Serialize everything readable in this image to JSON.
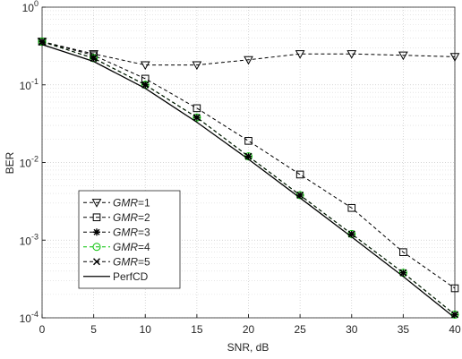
{
  "chart_data": {
    "type": "line",
    "x_label": "SNR, dB",
    "y_label": "BER",
    "x": [
      0,
      5,
      10,
      15,
      20,
      25,
      30,
      35,
      40
    ],
    "xlim": [
      0,
      40
    ],
    "xticks": [
      0,
      5,
      10,
      15,
      20,
      25,
      30,
      35,
      40
    ],
    "ylim": [
      0.0001,
      1
    ],
    "y_scale": "log",
    "yticks": [
      {
        "value": 0.0001,
        "label": "10^-4"
      },
      {
        "value": 0.001,
        "label": "10^-3"
      },
      {
        "value": 0.01,
        "label": "10^-2"
      },
      {
        "value": 0.1,
        "label": "10^-1"
      },
      {
        "value": 1,
        "label": "10^0"
      }
    ],
    "grid": true,
    "legend": "lower left",
    "series": [
      {
        "name": "GMR=1",
        "color": "#000000",
        "dash": true,
        "marker": "triangle-down",
        "values": [
          0.36,
          0.25,
          0.18,
          0.18,
          0.21,
          0.25,
          0.25,
          0.24,
          0.23
        ]
      },
      {
        "name": "GMR=2",
        "color": "#000000",
        "dash": true,
        "marker": "square",
        "values": [
          0.36,
          0.24,
          0.12,
          0.05,
          0.019,
          0.007,
          0.0026,
          0.0007,
          0.00024
        ]
      },
      {
        "name": "GMR=3",
        "color": "#000000",
        "dash": true,
        "marker": "asterisk",
        "values": [
          0.36,
          0.22,
          0.1,
          0.038,
          0.012,
          0.0038,
          0.0012,
          0.00038,
          0.00011
        ]
      },
      {
        "name": "GMR=4",
        "color": "#00c000",
        "dash": true,
        "marker": "circle",
        "values": [
          0.36,
          0.22,
          0.1,
          0.038,
          0.012,
          0.0038,
          0.0012,
          0.00038,
          0.00011
        ]
      },
      {
        "name": "GMR=5",
        "color": "#000000",
        "dash": true,
        "marker": "x",
        "values": [
          0.36,
          0.22,
          0.1,
          0.038,
          0.012,
          0.0038,
          0.0012,
          0.00038,
          0.00011
        ]
      },
      {
        "name": "PerfCD",
        "color": "#000000",
        "dash": false,
        "marker": "none",
        "values": [
          0.33,
          0.2,
          0.09,
          0.033,
          0.011,
          0.0035,
          0.0011,
          0.00034,
          0.0001
        ]
      }
    ]
  }
}
